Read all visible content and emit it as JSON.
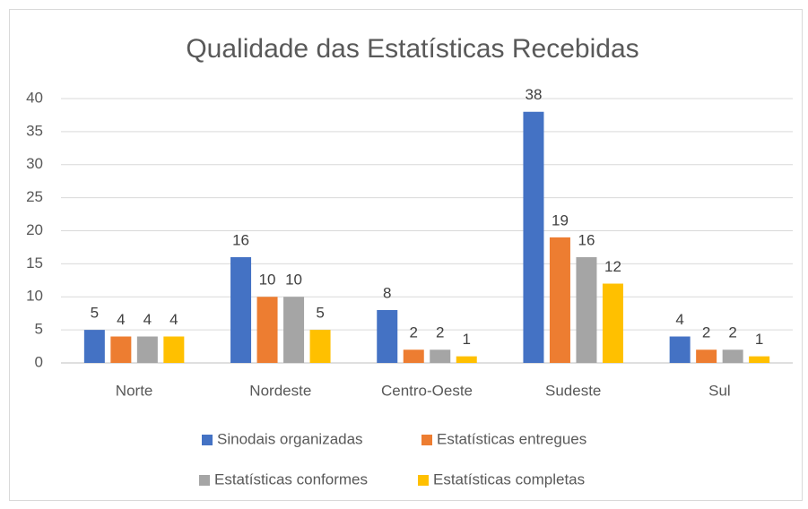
{
  "chart_data": {
    "type": "bar",
    "title": "Qualidade das Estatísticas Recebidas",
    "categories": [
      "Norte",
      "Nordeste",
      "Centro-Oeste",
      "Sudeste",
      "Sul"
    ],
    "series": [
      {
        "name": "Sinodais organizadas",
        "color": "#4472c4",
        "values": [
          5,
          16,
          8,
          38,
          4
        ]
      },
      {
        "name": "Estatísticas entregues",
        "color": "#ed7d31",
        "values": [
          4,
          10,
          2,
          19,
          2
        ]
      },
      {
        "name": "Estatísticas conformes",
        "color": "#a5a5a5",
        "values": [
          4,
          10,
          2,
          16,
          2
        ]
      },
      {
        "name": "Estatísticas completas",
        "color": "#ffc000",
        "values": [
          4,
          5,
          1,
          12,
          1
        ]
      }
    ],
    "ylim": [
      0,
      40
    ],
    "yticks": [
      0,
      5,
      10,
      15,
      20,
      25,
      30,
      35,
      40
    ],
    "grid": true,
    "legend": "bottom"
  }
}
